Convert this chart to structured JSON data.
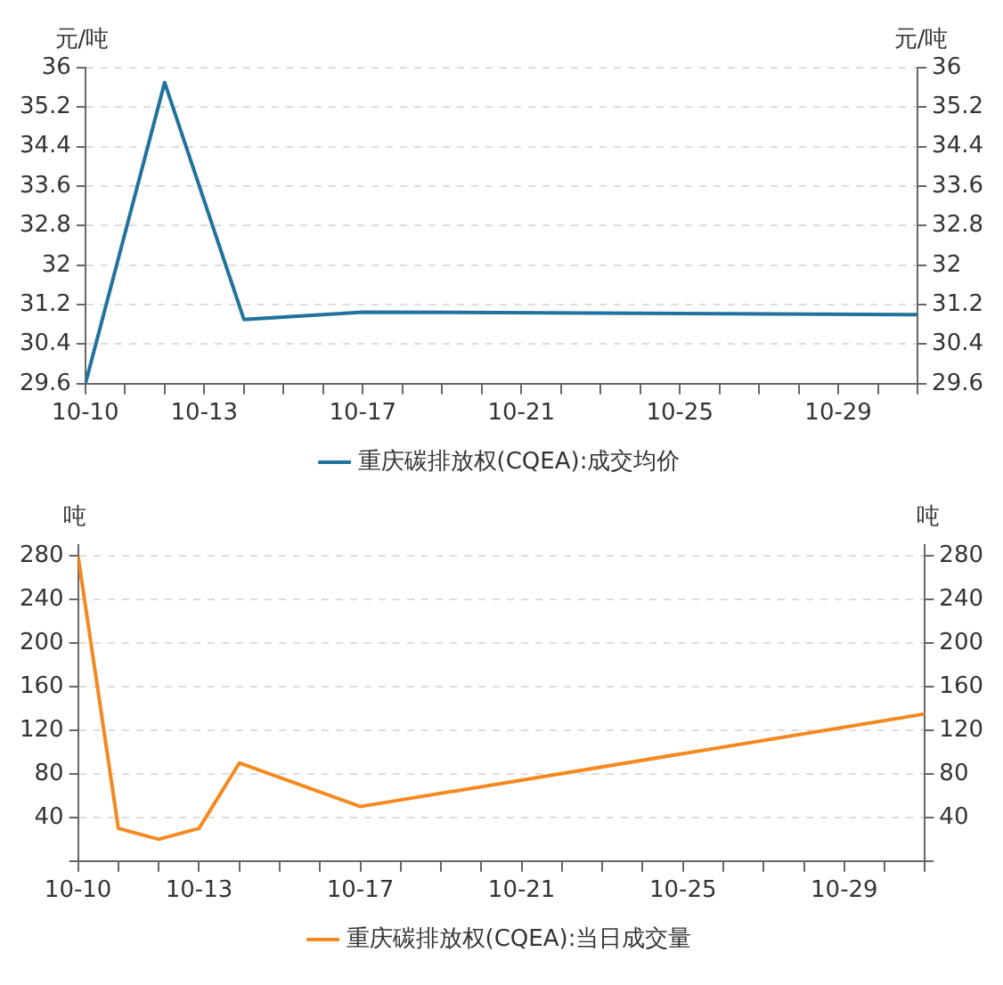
{
  "chart_data": [
    {
      "type": "line",
      "ylabel": "元/吨",
      "y2label": "元/吨",
      "series": [
        {
          "name": "重庆碳排放权(CQEA):成交均价",
          "color": "#21729f",
          "x": [
            "--10-10",
            "--10-12",
            "--10-14",
            "--10-17",
            "--10-31"
          ],
          "values": [
            29.6,
            35.7,
            30.9,
            31.05,
            31.0
          ]
        }
      ],
      "xlim": [
        "--10-10",
        "--10-31"
      ],
      "xticks": [
        {
          "value": "--10-10",
          "label": "10-10"
        },
        {
          "value": "--10-11",
          "label": null
        },
        {
          "value": "--10-12",
          "label": null
        },
        {
          "value": "--10-13",
          "label": "10-13"
        },
        {
          "value": "--10-14",
          "label": null
        },
        {
          "value": "--10-15",
          "label": null
        },
        {
          "value": "--10-16",
          "label": null
        },
        {
          "value": "--10-17",
          "label": "10-17"
        },
        {
          "value": "--10-18",
          "label": null
        },
        {
          "value": "--10-19",
          "label": null
        },
        {
          "value": "--10-20",
          "label": null
        },
        {
          "value": "--10-21",
          "label": "10-21"
        },
        {
          "value": "--10-22",
          "label": null
        },
        {
          "value": "--10-23",
          "label": null
        },
        {
          "value": "--10-24",
          "label": null
        },
        {
          "value": "--10-25",
          "label": "10-25"
        },
        {
          "value": "--10-26",
          "label": null
        },
        {
          "value": "--10-27",
          "label": null
        },
        {
          "value": "--10-28",
          "label": null
        },
        {
          "value": "--10-29",
          "label": "10-29"
        },
        {
          "value": "--10-30",
          "label": null
        },
        {
          "value": "--10-31",
          "label": null
        }
      ],
      "ylim": [
        29.6,
        36
      ],
      "yticks": [
        29.6,
        30.4,
        31.2,
        32,
        32.8,
        33.6,
        34.4,
        35.2,
        36
      ],
      "y2lim": [
        29.6,
        36
      ],
      "y2ticks": [
        29.6,
        30.4,
        31.2,
        32,
        32.8,
        33.6,
        34.4,
        35.2,
        36
      ],
      "grid": "y",
      "legend": "bottom",
      "marker": "none",
      "line_style": "solid"
    },
    {
      "type": "line",
      "ylabel": "吨",
      "y2label": "吨",
      "series": [
        {
          "name": "重庆碳排放权(CQEA):当日成交量",
          "color": "#f5891f",
          "x": [
            "--10-10",
            "--10-11",
            "--10-12",
            "--10-13",
            "--10-14",
            "--10-17",
            "--10-31"
          ],
          "values": [
            280,
            30,
            20,
            30,
            90,
            50,
            135
          ]
        }
      ],
      "xlim": [
        "--10-10",
        "--10-31"
      ],
      "xticks": [
        {
          "value": "--10-10",
          "label": "10-10"
        },
        {
          "value": "--10-11",
          "label": null
        },
        {
          "value": "--10-12",
          "label": null
        },
        {
          "value": "--10-13",
          "label": "10-13"
        },
        {
          "value": "--10-14",
          "label": null
        },
        {
          "value": "--10-15",
          "label": null
        },
        {
          "value": "--10-16",
          "label": null
        },
        {
          "value": "--10-17",
          "label": "10-17"
        },
        {
          "value": "--10-18",
          "label": null
        },
        {
          "value": "--10-19",
          "label": null
        },
        {
          "value": "--10-20",
          "label": null
        },
        {
          "value": "--10-21",
          "label": "10-21"
        },
        {
          "value": "--10-22",
          "label": null
        },
        {
          "value": "--10-23",
          "label": null
        },
        {
          "value": "--10-24",
          "label": null
        },
        {
          "value": "--10-25",
          "label": "10-25"
        },
        {
          "value": "--10-26",
          "label": null
        },
        {
          "value": "--10-27",
          "label": null
        },
        {
          "value": "--10-28",
          "label": null
        },
        {
          "value": "--10-29",
          "label": "10-29"
        },
        {
          "value": "--10-30",
          "label": null
        },
        {
          "value": "--10-31",
          "label": null
        }
      ],
      "ylim": [
        0,
        290
      ],
      "yticks": [
        {
          "value": 0,
          "label": null
        },
        40,
        80,
        120,
        160,
        200,
        240,
        280
      ],
      "y2lim": [
        0,
        290
      ],
      "y2ticks": [
        {
          "value": 0,
          "label": null
        },
        40,
        80,
        120,
        160,
        200,
        240,
        280
      ],
      "grid": "y",
      "legend": "bottom",
      "marker": "none",
      "line_style": "solid"
    }
  ]
}
